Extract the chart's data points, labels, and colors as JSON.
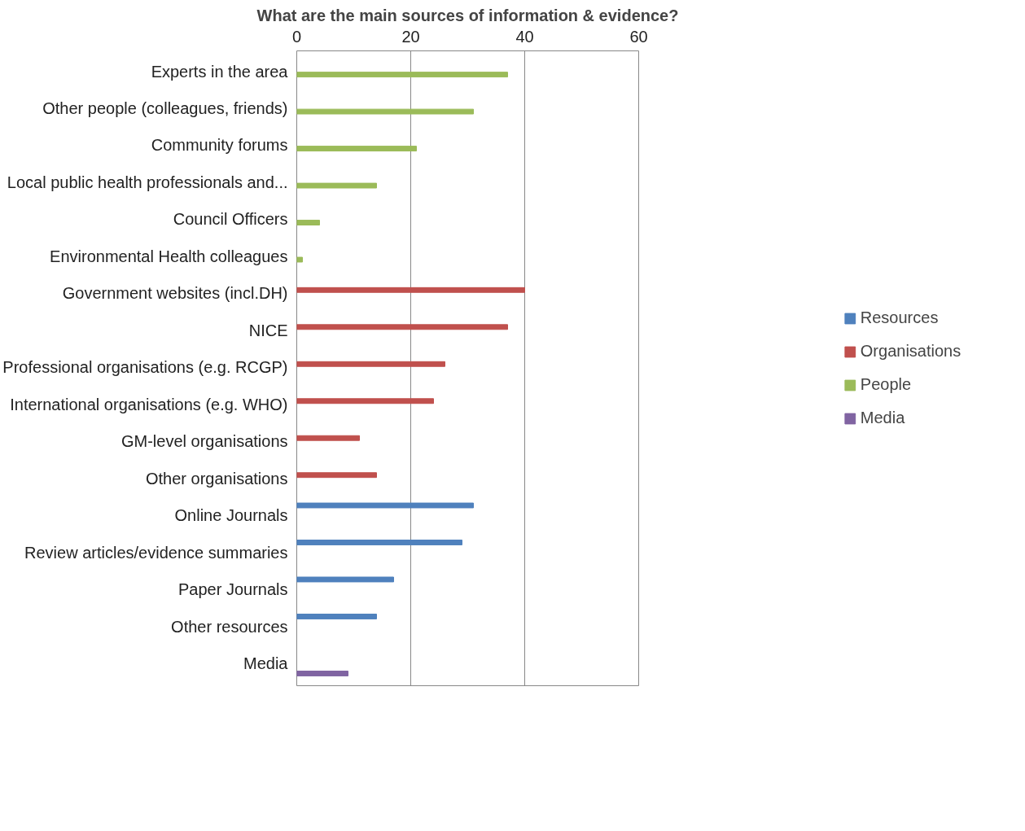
{
  "chart_data": {
    "type": "bar",
    "orientation": "horizontal",
    "title": "What are the main sources of information & evidence?",
    "categories": [
      "Experts in the area",
      "Other people (colleagues, friends)",
      "Community forums",
      "Local public health professionals and...",
      "Council Officers",
      "Environmental Health colleagues",
      "Government websites (incl.DH)",
      "NICE",
      "Professional organisations (e.g. RCGP)",
      "International organisations (e.g. WHO)",
      "GM-level organisations",
      "Other organisations",
      "Online Journals",
      "Review articles/evidence summaries",
      "Paper Journals",
      "Other resources",
      "Media"
    ],
    "series": [
      {
        "name": "Resources",
        "color": "#4f81bd",
        "values": [
          null,
          null,
          null,
          null,
          null,
          null,
          null,
          null,
          null,
          null,
          null,
          null,
          31,
          29,
          17,
          14,
          null
        ]
      },
      {
        "name": "Organisations",
        "color": "#c0504d",
        "values": [
          null,
          null,
          null,
          null,
          null,
          null,
          40,
          37,
          26,
          24,
          11,
          14,
          null,
          null,
          null,
          null,
          null
        ]
      },
      {
        "name": "People",
        "color": "#9bbb59",
        "values": [
          37,
          31,
          21,
          14,
          4,
          1,
          null,
          null,
          null,
          null,
          null,
          null,
          null,
          null,
          null,
          null,
          null
        ]
      },
      {
        "name": "Media",
        "color": "#8064a2",
        "values": [
          null,
          null,
          null,
          null,
          null,
          null,
          null,
          null,
          null,
          null,
          null,
          null,
          null,
          null,
          null,
          null,
          9
        ]
      }
    ],
    "xlim": [
      0,
      60
    ],
    "xticks": [
      0,
      20,
      40,
      60
    ],
    "grid": "x",
    "legend": "right"
  }
}
